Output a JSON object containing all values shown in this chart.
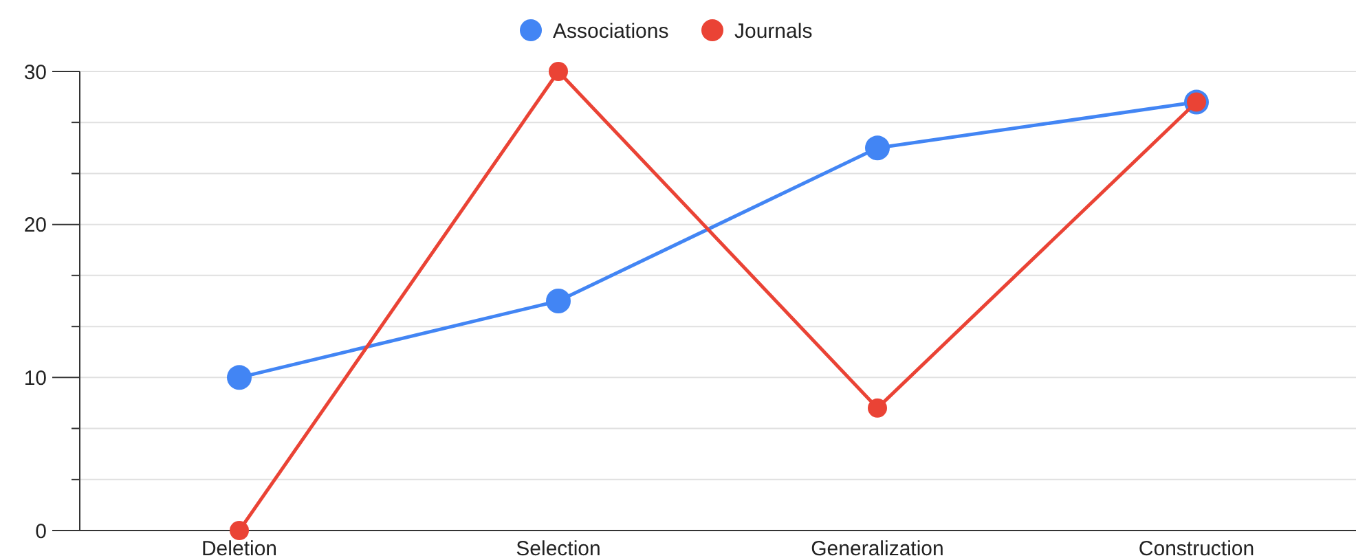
{
  "chart_data": {
    "type": "line",
    "categories": [
      "Deletion",
      "Selection",
      "Generalization",
      "Construction"
    ],
    "series": [
      {
        "name": "Associations",
        "color": "#4285f4",
        "values": [
          10,
          15,
          25,
          28
        ]
      },
      {
        "name": "Journals",
        "color": "#ea4335",
        "values": [
          0,
          30,
          8,
          28
        ]
      }
    ],
    "ylim": [
      0,
      30
    ],
    "yticks": [
      0,
      {
        "value": 3.33,
        "label": null
      },
      {
        "value": 6.67,
        "label": null
      },
      10,
      {
        "value": 13.33,
        "label": null
      },
      {
        "value": 16.67,
        "label": null
      },
      20,
      {
        "value": 23.33,
        "label": null
      },
      {
        "value": 26.67,
        "label": null
      },
      30
    ],
    "grid": "y",
    "legend": "top",
    "marker": "circle",
    "line_style": "solid"
  }
}
